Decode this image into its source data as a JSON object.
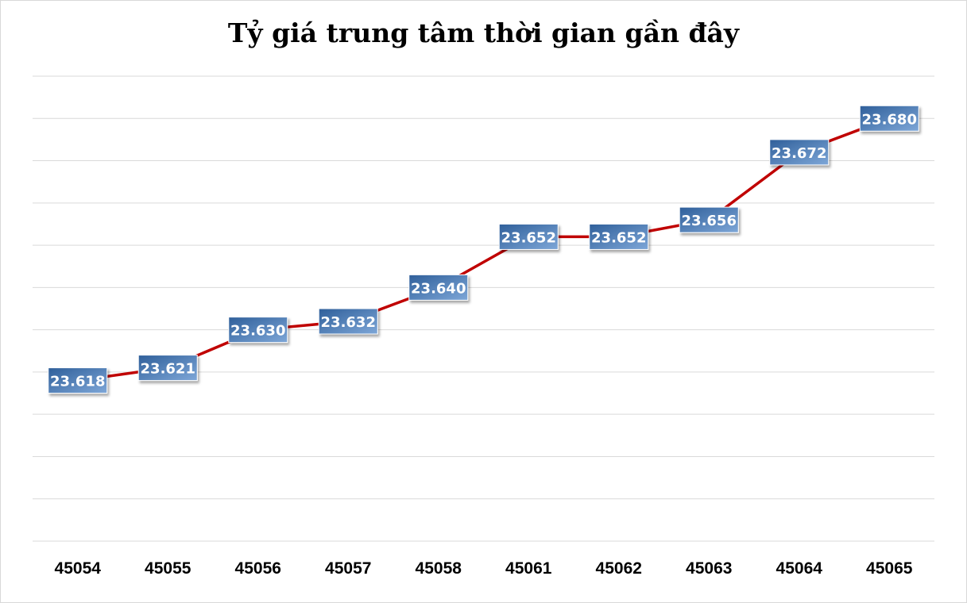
{
  "chart_data": {
    "type": "line",
    "title": "Tỷ giá trung tâm thời gian gần đây",
    "categories": [
      "45054",
      "45055",
      "45056",
      "45057",
      "45058",
      "45061",
      "45062",
      "45063",
      "45064",
      "45065"
    ],
    "values": [
      23618,
      23621,
      23630,
      23632,
      23640,
      23652,
      23652,
      23656,
      23672,
      23680
    ],
    "data_labels": [
      "23.618",
      "23.621",
      "23.630",
      "23.632",
      "23.640",
      "23.652",
      "23.652",
      "23.656",
      "23.672",
      "23.680"
    ],
    "ylim": [
      23580,
      23690
    ],
    "grid": true,
    "legend": "none",
    "colors": {
      "line": "#c00000",
      "label_fill_top": "#2f5f9a",
      "label_fill_bottom": "#7ea7d8",
      "grid": "#d9d9d9"
    }
  }
}
